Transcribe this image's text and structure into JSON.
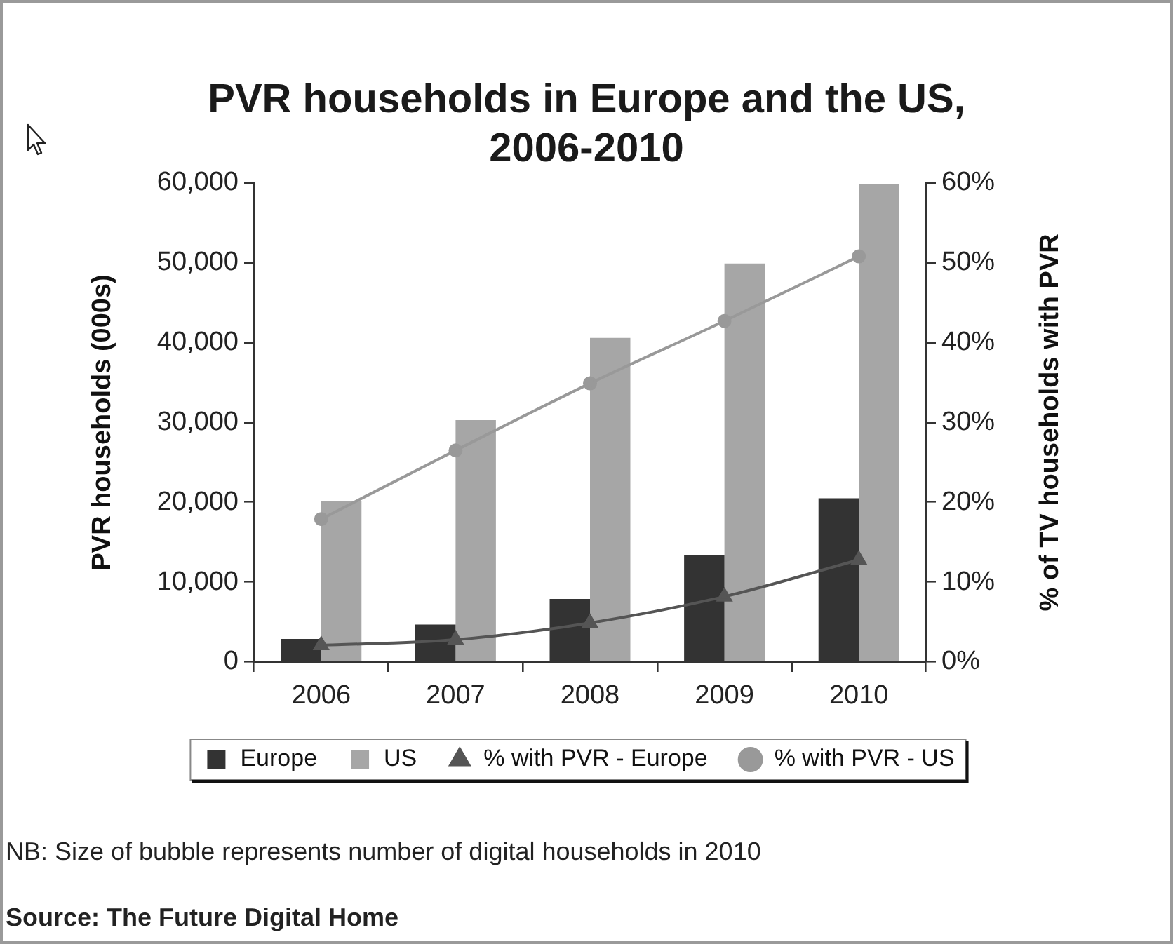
{
  "chart_data": {
    "type": "bar",
    "title": "PVR households in Europe and the US, 2006-2010",
    "ylabel": "PVR households (000s)",
    "y2label": "% of TV households with PVR",
    "categories": [
      "2006",
      "2007",
      "2008",
      "2009",
      "2010"
    ],
    "series": [
      {
        "name": "Europe",
        "color": "#333333",
        "values": [
          2900,
          4700,
          7900,
          13400,
          20500
        ]
      },
      {
        "name": "US",
        "color": "#a6a6a6",
        "values": [
          20200,
          30300,
          40600,
          49900,
          59900
        ]
      },
      {
        "name": "% with PVR - Europe",
        "type": "line",
        "axis": "y2",
        "color": "#555555",
        "marker": "triangle",
        "values": [
          2.1,
          2.8,
          4.9,
          8.2,
          12.8
        ]
      },
      {
        "name": "% with PVR - US",
        "type": "line",
        "axis": "y2",
        "color": "#999999",
        "marker": "circle",
        "values": [
          17.9,
          26.5,
          34.9,
          42.7,
          50.8
        ]
      }
    ],
    "ylim": [
      0,
      60000
    ],
    "yticks": [
      0,
      {
        "value": 10000,
        "label": "10,000"
      },
      {
        "value": 20000,
        "label": "20,000"
      },
      {
        "value": 30000,
        "label": "30,000"
      },
      {
        "value": 40000,
        "label": "40,000"
      },
      {
        "value": 50000,
        "label": "50,000"
      },
      {
        "value": 60000,
        "label": "60,000"
      }
    ],
    "y2lim": [
      0,
      60
    ],
    "y2ticks": [
      {
        "value": 0,
        "label": "0%"
      },
      {
        "value": 10,
        "label": "10%"
      },
      {
        "value": 20,
        "label": "20%"
      },
      {
        "value": 30,
        "label": "30%"
      },
      {
        "value": 40,
        "label": "40%"
      },
      {
        "value": 50,
        "label": "50%"
      },
      {
        "value": 60,
        "label": "60%"
      }
    ],
    "grid": false,
    "legend": "bottom",
    "annotations": [
      "NB: Size of bubble represents number of digital households in 2010",
      "Source: The Future Digital Home"
    ]
  }
}
